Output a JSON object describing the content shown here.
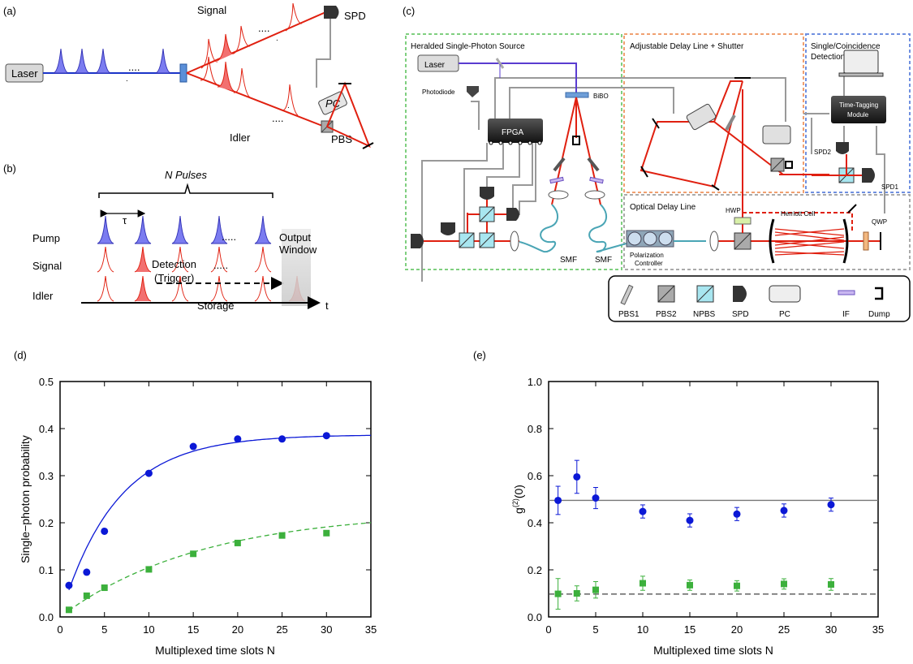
{
  "panel_a": {
    "label": "(a)",
    "laser": "Laser",
    "signal": "Signal",
    "idler": "Idler",
    "spd": "SPD",
    "pc": "PC",
    "pbs": "PBS",
    "dots": "....",
    "dot": "."
  },
  "panel_b": {
    "label": "(b)",
    "n_pulses": "N Pulses",
    "tau": "τ",
    "pump": "Pump",
    "signal": "Signal",
    "idler": "Idler",
    "detection": "Detection",
    "trigger": "(Trigger)",
    "storage": "Storage",
    "output": "Output",
    "window": "Window",
    "t": "t",
    "dots": "....."
  },
  "panel_c": {
    "label": "(c)",
    "source_title": "Heralded Single-Photon Source",
    "delay_title": "Adjustable Delay Line + Shutter",
    "detect_title_1": "Single/Coincidence",
    "detect_title_2": "Detection",
    "optical_delay": "Optical Delay Line",
    "laser": "Laser",
    "photodiode": "Photodiode",
    "fpga": "FPGA",
    "bibo": "BiBO",
    "smf1": "SMF",
    "smf2": "SMF",
    "pol_ctrl_1": "Polarization",
    "pol_ctrl_2": "Controller",
    "hwp": "HWP",
    "herriott": "Herriott Cell",
    "qwp": "QWP",
    "ttm_1": "Time-Tagging",
    "ttm_2": "Module",
    "spd1": "SPD1",
    "spd2": "SPD2",
    "legend": [
      "PBS1",
      "PBS2",
      "NPBS",
      "SPD",
      "PC",
      "IF",
      "Dump"
    ]
  },
  "panel_d": {
    "label": "(d)",
    "chart_data": {
      "type": "scatter",
      "xlabel": "Multiplexed time slots N",
      "ylabel": "Single−photon probability",
      "xlim": [
        0,
        35
      ],
      "ylim": [
        0,
        0.5
      ],
      "xticks": [
        0,
        5,
        10,
        15,
        20,
        25,
        30,
        35
      ],
      "yticks": [
        0.0,
        0.1,
        0.2,
        0.3,
        0.4,
        0.5
      ],
      "series": [
        {
          "marker": "circle",
          "color": "#0b18d6",
          "x": [
            1,
            3,
            5,
            10,
            15,
            20,
            25,
            30
          ],
          "y": [
            0.067,
            0.095,
            0.182,
            0.305,
            0.362,
            0.378,
            0.378,
            0.385
          ],
          "fit": "solid",
          "fit_params": {
            "A": 0.387,
            "k": 0.16
          }
        },
        {
          "marker": "square",
          "color": "#3cb03c",
          "x": [
            1,
            3,
            5,
            10,
            15,
            20,
            25,
            30
          ],
          "y": [
            0.015,
            0.045,
            0.062,
            0.101,
            0.134,
            0.157,
            0.173,
            0.178
          ],
          "fit": "dashed",
          "fit_params": {
            "A": 0.225,
            "k": 0.063
          }
        }
      ]
    }
  },
  "panel_e": {
    "label": "(e)",
    "chart_data": {
      "type": "scatter",
      "xlabel": "Multiplexed time slots N",
      "ylabel": "g(2)(0)",
      "xlim": [
        0,
        35
      ],
      "ylim": [
        0,
        1.0
      ],
      "xticks": [
        0,
        5,
        10,
        15,
        20,
        25,
        30,
        35
      ],
      "yticks": [
        0.0,
        0.2,
        0.4,
        0.6,
        0.8,
        1.0
      ],
      "series": [
        {
          "marker": "circle",
          "color": "#0b18d6",
          "x": [
            1,
            3,
            5,
            10,
            15,
            20,
            25,
            30
          ],
          "y": [
            0.495,
            0.595,
            0.505,
            0.448,
            0.41,
            0.437,
            0.452,
            0.477
          ],
          "err": [
            0.06,
            0.07,
            0.045,
            0.028,
            0.028,
            0.028,
            0.028,
            0.028
          ]
        },
        {
          "marker": "square",
          "color": "#3cb03c",
          "x": [
            1,
            3,
            5,
            10,
            15,
            20,
            25,
            30
          ],
          "y": [
            0.098,
            0.1,
            0.115,
            0.143,
            0.135,
            0.132,
            0.14,
            0.138
          ],
          "err": [
            0.065,
            0.032,
            0.035,
            0.03,
            0.022,
            0.022,
            0.022,
            0.025
          ]
        }
      ],
      "hlines": [
        {
          "y": 0.495,
          "style": "solid",
          "color": "#777777"
        },
        {
          "y": 0.097,
          "style": "dashed",
          "color": "#444444"
        }
      ]
    }
  }
}
